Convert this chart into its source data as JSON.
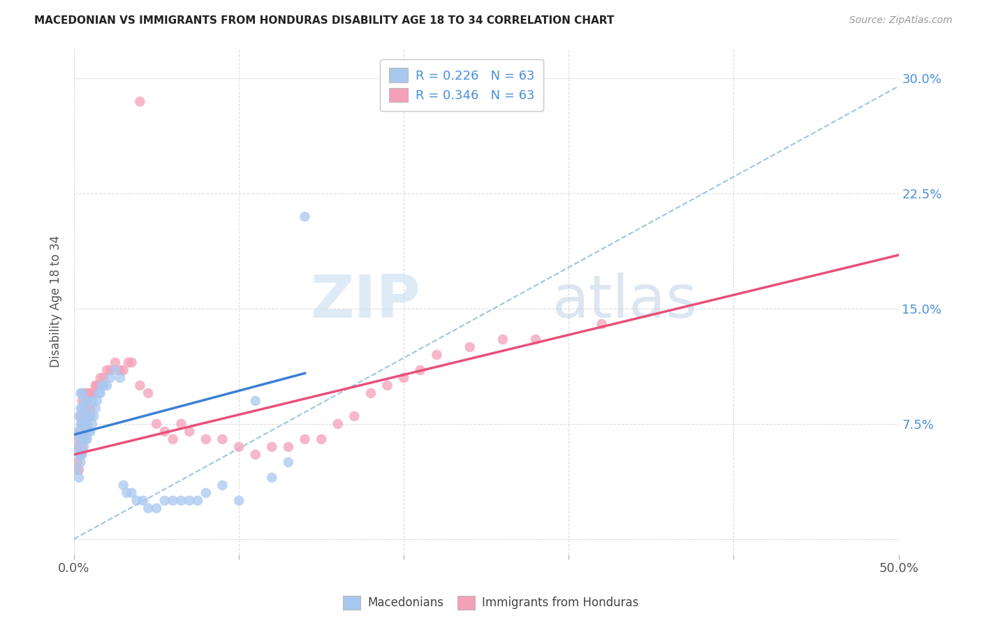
{
  "title": "MACEDONIAN VS IMMIGRANTS FROM HONDURAS DISABILITY AGE 18 TO 34 CORRELATION CHART",
  "source": "Source: ZipAtlas.com",
  "ylabel": "Disability Age 18 to 34",
  "xlim": [
    0.0,
    0.5
  ],
  "ylim": [
    -0.01,
    0.32
  ],
  "yticks": [
    0.0,
    0.075,
    0.15,
    0.225,
    0.3
  ],
  "yticklabels": [
    "",
    "7.5%",
    "15.0%",
    "22.5%",
    "30.0%"
  ],
  "macedonian_color": "#a8c8f0",
  "honduras_color": "#f4a0b8",
  "macedonian_line_color": "#3a7fd5",
  "honduras_line_color": "#e8507a",
  "dashed_line_color": "#90c0e0",
  "tick_color": "#4a90d9",
  "legend_label1": "Macedonians",
  "legend_label2": "Immigrants from Honduras",
  "watermark_zip": "ZIP",
  "watermark_atlas": "atlas",
  "background_color": "#ffffff",
  "grid_color": "#dddddd",
  "mac_scatter_x": [
    0.002,
    0.002,
    0.002,
    0.003,
    0.003,
    0.003,
    0.003,
    0.004,
    0.004,
    0.004,
    0.004,
    0.004,
    0.005,
    0.005,
    0.005,
    0.005,
    0.005,
    0.006,
    0.006,
    0.006,
    0.006,
    0.007,
    0.007,
    0.007,
    0.008,
    0.008,
    0.008,
    0.009,
    0.009,
    0.01,
    0.01,
    0.011,
    0.011,
    0.012,
    0.013,
    0.014,
    0.015,
    0.016,
    0.017,
    0.018,
    0.02,
    0.022,
    0.025,
    0.028,
    0.03,
    0.032,
    0.035,
    0.038,
    0.042,
    0.045,
    0.05,
    0.055,
    0.06,
    0.065,
    0.07,
    0.075,
    0.08,
    0.09,
    0.1,
    0.11,
    0.12,
    0.13,
    0.14
  ],
  "mac_scatter_y": [
    0.045,
    0.06,
    0.07,
    0.04,
    0.055,
    0.068,
    0.08,
    0.05,
    0.065,
    0.075,
    0.085,
    0.095,
    0.055,
    0.065,
    0.075,
    0.085,
    0.095,
    0.06,
    0.07,
    0.08,
    0.09,
    0.065,
    0.075,
    0.085,
    0.065,
    0.075,
    0.09,
    0.07,
    0.08,
    0.07,
    0.08,
    0.075,
    0.09,
    0.08,
    0.085,
    0.09,
    0.095,
    0.095,
    0.1,
    0.1,
    0.1,
    0.105,
    0.11,
    0.105,
    0.035,
    0.03,
    0.03,
    0.025,
    0.025,
    0.02,
    0.02,
    0.025,
    0.025,
    0.025,
    0.025,
    0.025,
    0.03,
    0.035,
    0.025,
    0.09,
    0.04,
    0.05,
    0.21
  ],
  "hon_scatter_x": [
    0.002,
    0.002,
    0.003,
    0.003,
    0.004,
    0.004,
    0.004,
    0.005,
    0.005,
    0.005,
    0.006,
    0.006,
    0.006,
    0.007,
    0.007,
    0.007,
    0.008,
    0.008,
    0.009,
    0.009,
    0.01,
    0.01,
    0.011,
    0.012,
    0.013,
    0.014,
    0.015,
    0.016,
    0.018,
    0.02,
    0.022,
    0.025,
    0.028,
    0.03,
    0.033,
    0.035,
    0.04,
    0.045,
    0.05,
    0.055,
    0.06,
    0.065,
    0.07,
    0.08,
    0.09,
    0.1,
    0.11,
    0.12,
    0.13,
    0.14,
    0.15,
    0.16,
    0.17,
    0.18,
    0.19,
    0.2,
    0.21,
    0.22,
    0.24,
    0.26,
    0.28,
    0.32,
    0.04
  ],
  "hon_scatter_y": [
    0.05,
    0.06,
    0.045,
    0.065,
    0.055,
    0.07,
    0.08,
    0.06,
    0.075,
    0.09,
    0.065,
    0.08,
    0.095,
    0.07,
    0.085,
    0.095,
    0.075,
    0.09,
    0.08,
    0.095,
    0.085,
    0.095,
    0.095,
    0.095,
    0.1,
    0.1,
    0.1,
    0.105,
    0.105,
    0.11,
    0.11,
    0.115,
    0.11,
    0.11,
    0.115,
    0.115,
    0.1,
    0.095,
    0.075,
    0.07,
    0.065,
    0.075,
    0.07,
    0.065,
    0.065,
    0.06,
    0.055,
    0.06,
    0.06,
    0.065,
    0.065,
    0.075,
    0.08,
    0.095,
    0.1,
    0.105,
    0.11,
    0.12,
    0.125,
    0.13,
    0.13,
    0.14,
    0.285
  ],
  "mac_line_x": [
    0.0,
    0.14
  ],
  "mac_line_y_start": 0.068,
  "mac_line_y_end": 0.108,
  "hon_line_x": [
    0.0,
    0.5
  ],
  "hon_line_y_start": 0.055,
  "hon_line_y_end": 0.185,
  "dash_line_x": [
    0.0,
    0.5
  ],
  "dash_line_y_start": 0.0,
  "dash_line_y_end": 0.295
}
